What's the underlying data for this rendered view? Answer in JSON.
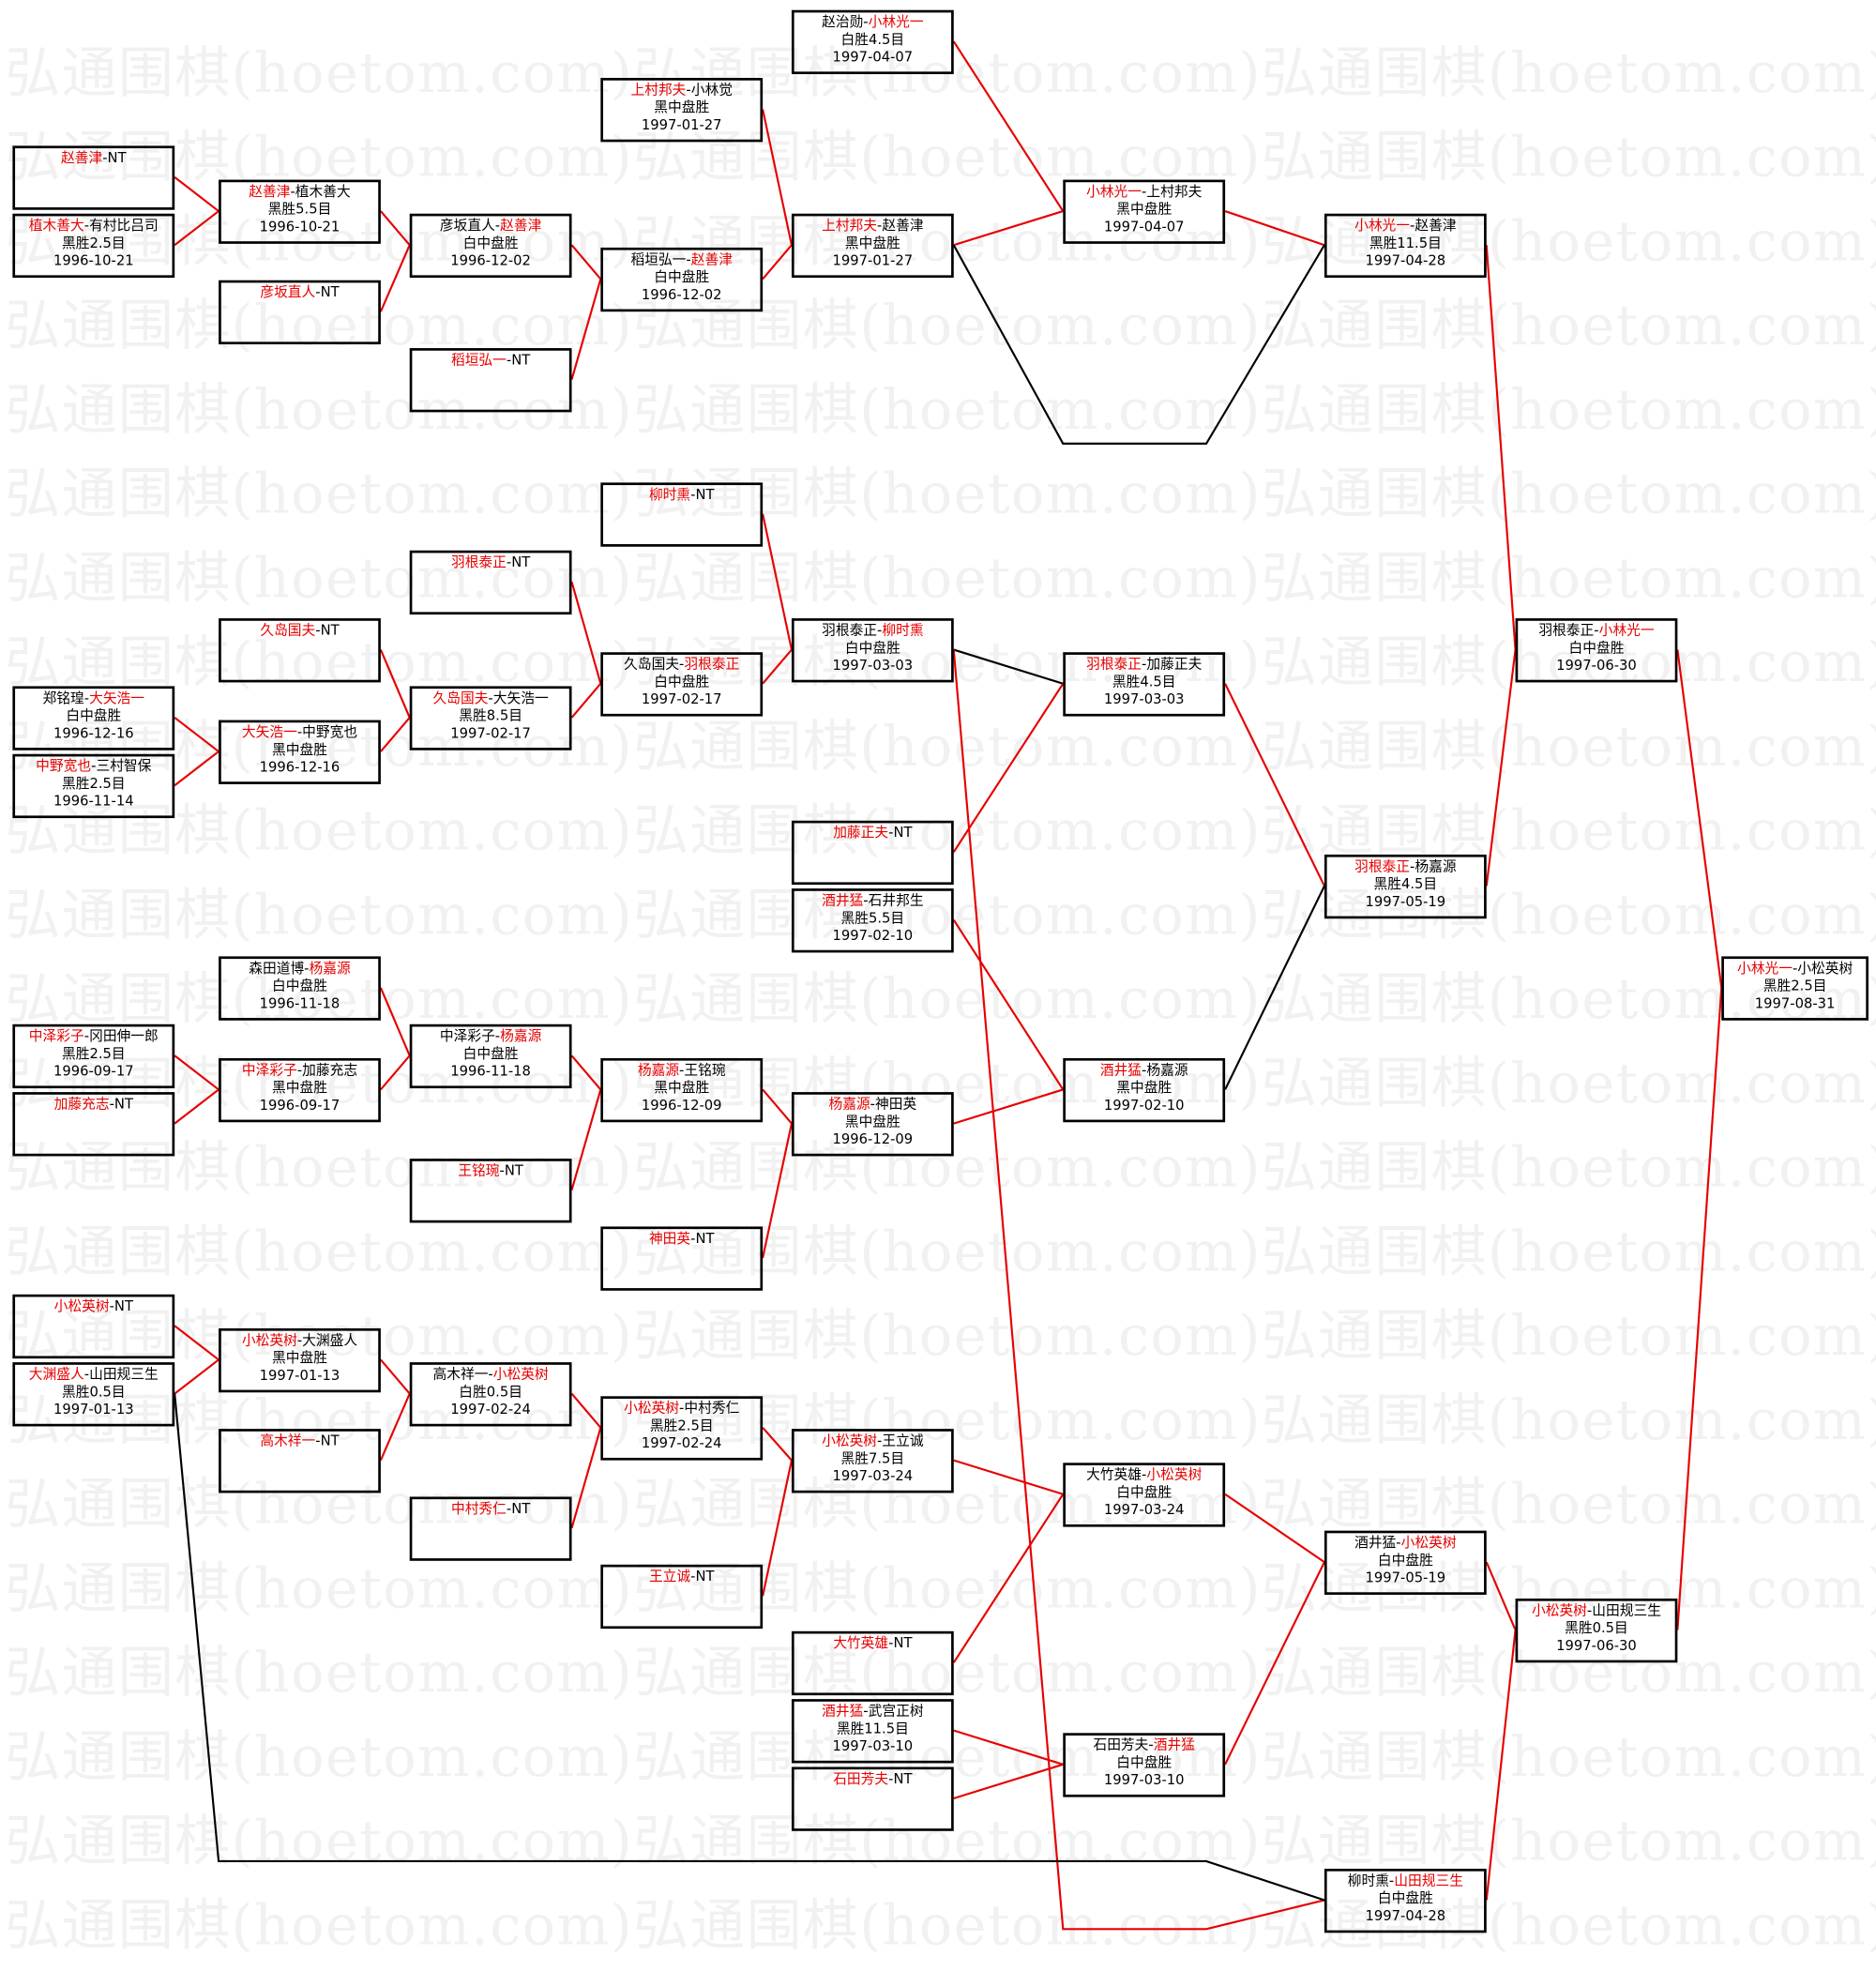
{
  "watermark": "弘通围棋(hoetom.com)",
  "colors": {
    "winner_line": "#e60000",
    "loser_line": "#000000",
    "winner_name": "#e60000"
  },
  "matches": [
    {
      "p1": "赵善津",
      "p2": "NT",
      "winner": 1,
      "result": "",
      "date": ""
    },
    {
      "p1": "植木善大",
      "p2": "有村比吕司",
      "winner": 1,
      "result": "黑胜2.5目",
      "date": "1996-10-21"
    },
    {
      "p1": "赵善津",
      "p2": "植木善大",
      "winner": 1,
      "result": "黑胜5.5目",
      "date": "1996-10-21"
    },
    {
      "p1": "彦坂直人",
      "p2": "NT",
      "winner": 1,
      "result": "",
      "date": ""
    },
    {
      "p1": "彦坂直人",
      "p2": "赵善津",
      "winner": 2,
      "result": "白中盘胜",
      "date": "1996-12-02"
    },
    {
      "p1": "稻垣弘一",
      "p2": "NT",
      "winner": 1,
      "result": "",
      "date": ""
    },
    {
      "p1": "上村邦夫",
      "p2": "小林觉",
      "winner": 1,
      "result": "黑中盘胜",
      "date": "1997-01-27"
    },
    {
      "p1": "稻垣弘一",
      "p2": "赵善津",
      "winner": 2,
      "result": "白中盘胜",
      "date": "1996-12-02"
    },
    {
      "p1": "赵治勋",
      "p2": "小林光一",
      "winner": 2,
      "result": "白胜4.5目",
      "date": "1997-04-07"
    },
    {
      "p1": "上村邦夫",
      "p2": "赵善津",
      "winner": 1,
      "result": "黑中盘胜",
      "date": "1997-01-27"
    },
    {
      "p1": "小林光一",
      "p2": "上村邦夫",
      "winner": 1,
      "result": "黑中盘胜",
      "date": "1997-04-07"
    },
    {
      "p1": "小林光一",
      "p2": "赵善津",
      "winner": 1,
      "result": "黑胜11.5目",
      "date": "1997-04-28"
    },
    {
      "p1": "郑铭瑝",
      "p2": "大矢浩一",
      "winner": 2,
      "result": "白中盘胜",
      "date": "1996-12-16"
    },
    {
      "p1": "中野宽也",
      "p2": "三村智保",
      "winner": 1,
      "result": "黑胜2.5目",
      "date": "1996-11-14"
    },
    {
      "p1": "久岛国夫",
      "p2": "NT",
      "winner": 1,
      "result": "",
      "date": ""
    },
    {
      "p1": "大矢浩一",
      "p2": "中野宽也",
      "winner": 1,
      "result": "黑中盘胜",
      "date": "1996-12-16"
    },
    {
      "p1": "羽根泰正",
      "p2": "NT",
      "winner": 1,
      "result": "",
      "date": ""
    },
    {
      "p1": "久岛国夫",
      "p2": "大矢浩一",
      "winner": 1,
      "result": "黑胜8.5目",
      "date": "1997-02-17"
    },
    {
      "p1": "柳时熏",
      "p2": "NT",
      "winner": 1,
      "result": "",
      "date": ""
    },
    {
      "p1": "久岛国夫",
      "p2": "羽根泰正",
      "winner": 2,
      "result": "白中盘胜",
      "date": "1997-02-17"
    },
    {
      "p1": "羽根泰正",
      "p2": "柳时熏",
      "winner": 2,
      "result": "白中盘胜",
      "date": "1997-03-03"
    },
    {
      "p1": "加藤正夫",
      "p2": "NT",
      "winner": 1,
      "result": "",
      "date": ""
    },
    {
      "p1": "酒井猛",
      "p2": "石井邦生",
      "winner": 1,
      "result": "黑胜5.5目",
      "date": "1997-02-10"
    },
    {
      "p1": "羽根泰正",
      "p2": "加藤正夫",
      "winner": 1,
      "result": "黑胜4.5目",
      "date": "1997-03-03"
    },
    {
      "p1": "羽根泰正",
      "p2": "杨嘉源",
      "winner": 1,
      "result": "黑胜4.5目",
      "date": "1997-05-19"
    },
    {
      "p1": "羽根泰正",
      "p2": "小林光一",
      "winner": 2,
      "result": "白中盘胜",
      "date": "1997-06-30"
    },
    {
      "p1": "森田道博",
      "p2": "杨嘉源",
      "winner": 2,
      "result": "白中盘胜",
      "date": "1996-11-18"
    },
    {
      "p1": "中泽彩子",
      "p2": "冈田伸一郎",
      "winner": 1,
      "result": "黑胜2.5目",
      "date": "1996-09-17"
    },
    {
      "p1": "加藤充志",
      "p2": "NT",
      "winner": 1,
      "result": "",
      "date": ""
    },
    {
      "p1": "中泽彩子",
      "p2": "加藤充志",
      "winner": 1,
      "result": "黑中盘胜",
      "date": "1996-09-17"
    },
    {
      "p1": "中泽彩子",
      "p2": "杨嘉源",
      "winner": 2,
      "result": "白中盘胜",
      "date": "1996-11-18"
    },
    {
      "p1": "王铭琬",
      "p2": "NT",
      "winner": 1,
      "result": "",
      "date": ""
    },
    {
      "p1": "杨嘉源",
      "p2": "王铭琬",
      "winner": 1,
      "result": "黑中盘胜",
      "date": "1996-12-09"
    },
    {
      "p1": "神田英",
      "p2": "NT",
      "winner": 1,
      "result": "",
      "date": ""
    },
    {
      "p1": "杨嘉源",
      "p2": "神田英",
      "winner": 1,
      "result": "黑中盘胜",
      "date": "1996-12-09"
    },
    {
      "p1": "酒井猛",
      "p2": "杨嘉源",
      "winner": 1,
      "result": "黑中盘胜",
      "date": "1997-02-10"
    },
    {
      "p1": "小松英树",
      "p2": "NT",
      "winner": 1,
      "result": "",
      "date": ""
    },
    {
      "p1": "大渊盛人",
      "p2": "山田规三生",
      "winner": 1,
      "result": "黑胜0.5目",
      "date": "1997-01-13"
    },
    {
      "p1": "小松英树",
      "p2": "大渊盛人",
      "winner": 1,
      "result": "黑中盘胜",
      "date": "1997-01-13"
    },
    {
      "p1": "高木祥一",
      "p2": "NT",
      "winner": 1,
      "result": "",
      "date": ""
    },
    {
      "p1": "高木祥一",
      "p2": "小松英树",
      "winner": 2,
      "result": "白胜0.5目",
      "date": "1997-02-24"
    },
    {
      "p1": "中村秀仁",
      "p2": "NT",
      "winner": 1,
      "result": "",
      "date": ""
    },
    {
      "p1": "小松英树",
      "p2": "中村秀仁",
      "winner": 1,
      "result": "黑胜2.5目",
      "date": "1997-02-24"
    },
    {
      "p1": "王立诚",
      "p2": "NT",
      "winner": 1,
      "result": "",
      "date": ""
    },
    {
      "p1": "小松英树",
      "p2": "王立诚",
      "winner": 1,
      "result": "黑胜7.5目",
      "date": "1997-03-24"
    },
    {
      "p1": "大竹英雄",
      "p2": "NT",
      "winner": 1,
      "result": "",
      "date": ""
    },
    {
      "p1": "酒井猛",
      "p2": "武宫正树",
      "winner": 1,
      "result": "黑胜11.5目",
      "date": "1997-03-10"
    },
    {
      "p1": "石田芳夫",
      "p2": "NT",
      "winner": 1,
      "result": "",
      "date": ""
    },
    {
      "p1": "大竹英雄",
      "p2": "小松英树",
      "winner": 2,
      "result": "白中盘胜",
      "date": "1997-03-24"
    },
    {
      "p1": "石田芳夫",
      "p2": "酒井猛",
      "winner": 2,
      "result": "白中盘胜",
      "date": "1997-03-10"
    },
    {
      "p1": "酒井猛",
      "p2": "小松英树",
      "winner": 2,
      "result": "白中盘胜",
      "date": "1997-05-19"
    },
    {
      "p1": "柳时熏",
      "p2": "山田规三生",
      "winner": 2,
      "result": "白中盘胜",
      "date": "1997-04-28"
    },
    {
      "p1": "小松英树",
      "p2": "山田规三生",
      "winner": 1,
      "result": "黑胜0.5目",
      "date": "1997-06-30"
    },
    {
      "p1": "小林光一",
      "p2": "小松英树",
      "winner": 1,
      "result": "黑胜2.5目",
      "date": "1997-08-31"
    }
  ]
}
